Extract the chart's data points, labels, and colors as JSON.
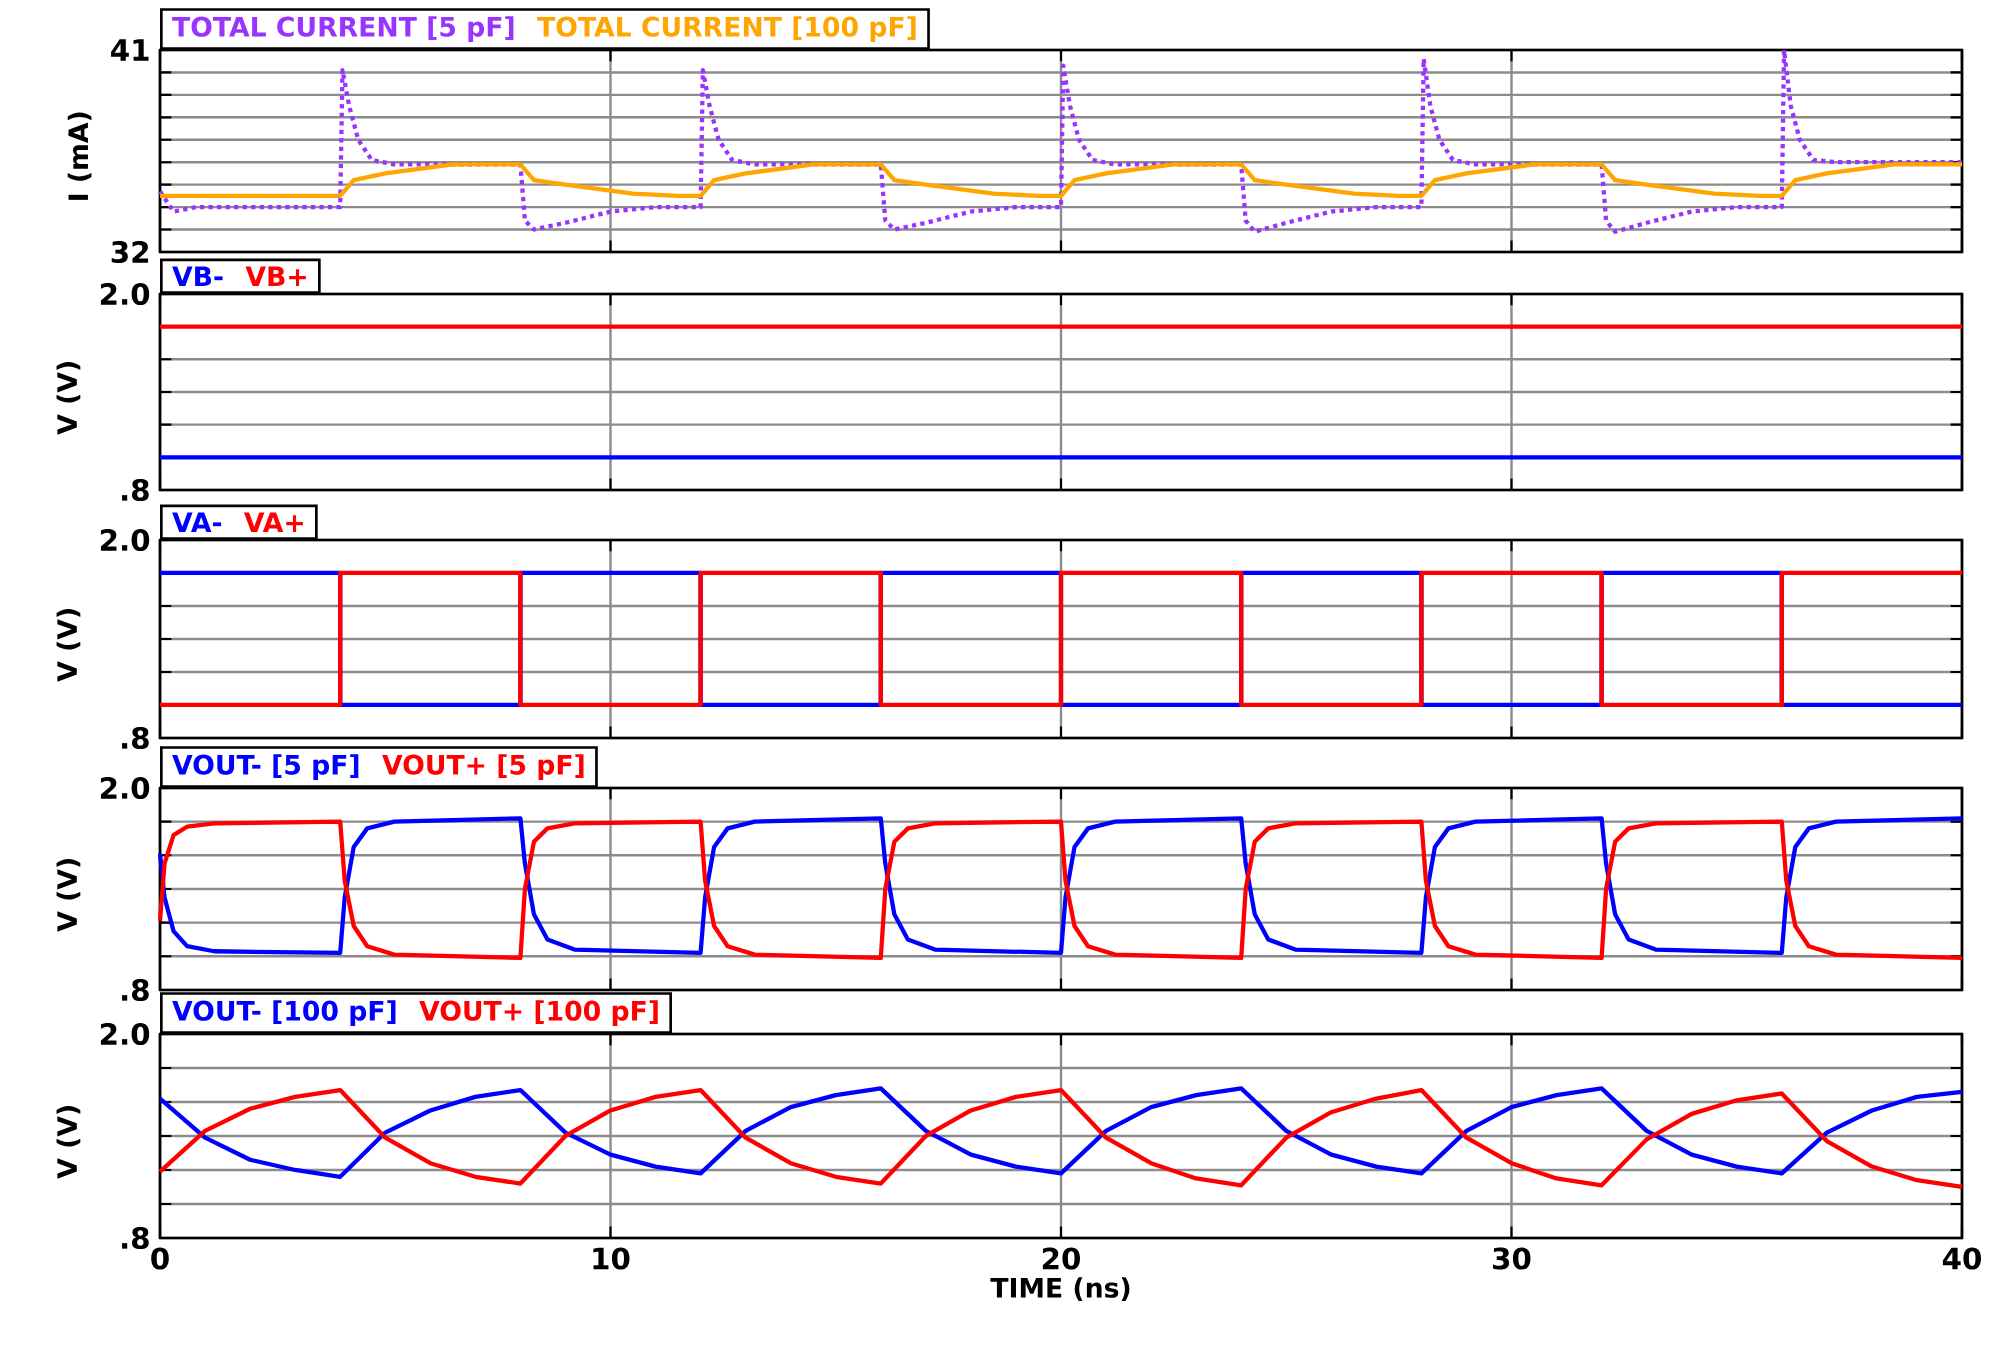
{
  "chart_data": [
    {
      "type": "line",
      "ylabel": "I (mA)",
      "legend": "top left",
      "grid": true,
      "tick_labels": "y",
      "xlim": [
        0,
        40
      ],
      "xticks": [
        0,
        10,
        20,
        30,
        40
      ],
      "ylim": [
        32,
        41
      ],
      "yticks": [
        32,
        {
          "value": 33,
          "label": null
        },
        {
          "value": 34,
          "label": null
        },
        {
          "value": 35,
          "label": null
        },
        {
          "value": 36,
          "label": null
        },
        {
          "value": 37,
          "label": null
        },
        {
          "value": 38,
          "label": null
        },
        {
          "value": 39,
          "label": null
        },
        {
          "value": 40,
          "label": null
        },
        41
      ],
      "series": [
        {
          "name": "TOTAL CURRENT [5 pF]",
          "color": "#9933ff",
          "line_style": "dotted",
          "x": [
            0,
            0.3,
            0.8,
            4,
            4.05,
            4.2,
            4.4,
            4.7,
            5.2,
            8,
            8.1,
            8.3,
            9,
            10,
            11,
            12,
            12.05,
            12.2,
            12.4,
            12.7,
            13.2,
            16,
            16.1,
            16.3,
            17,
            18,
            19,
            20,
            20.05,
            20.2,
            20.4,
            20.7,
            21.2,
            24,
            24.1,
            24.3,
            25,
            26,
            27,
            28,
            28.05,
            28.2,
            28.4,
            28.7,
            29.2,
            32,
            32.1,
            32.3,
            33,
            34,
            35,
            36,
            36.05,
            36.2,
            36.4,
            36.7,
            37.2,
            40
          ],
          "values": [
            34.7,
            33.8,
            34.0,
            34.0,
            40.1,
            38.5,
            37.0,
            36.1,
            35.9,
            35.9,
            33.4,
            33.0,
            33.3,
            33.8,
            34.0,
            34.0,
            40.1,
            38.5,
            37.0,
            36.1,
            35.9,
            35.9,
            33.4,
            33.0,
            33.3,
            33.8,
            34.0,
            34.0,
            40.3,
            38.5,
            37.0,
            36.1,
            35.9,
            35.9,
            33.4,
            32.9,
            33.3,
            33.8,
            34.0,
            34.0,
            40.6,
            38.5,
            37.0,
            36.1,
            35.9,
            35.9,
            33.4,
            32.9,
            33.3,
            33.8,
            34.0,
            34.0,
            41.0,
            38.5,
            37.0,
            36.1,
            36.0,
            36.0
          ]
        },
        {
          "name": "TOTAL CURRENT [100 pF]",
          "color": "#ffa500",
          "line_style": "solid",
          "x": [
            0,
            4,
            4.3,
            5,
            6.5,
            8,
            8.3,
            9,
            10.5,
            11.5,
            12,
            12.3,
            13,
            14.5,
            16,
            16.3,
            17,
            18.5,
            19.5,
            20,
            20.3,
            21,
            22.5,
            24,
            24.3,
            25,
            26.5,
            27.5,
            28,
            28.3,
            29,
            30.5,
            32,
            32.3,
            33,
            34.5,
            35.5,
            36,
            36.3,
            37,
            38.5,
            40
          ],
          "values": [
            34.5,
            34.5,
            35.2,
            35.5,
            35.9,
            35.9,
            35.2,
            35.0,
            34.6,
            34.5,
            34.5,
            35.2,
            35.5,
            35.9,
            35.9,
            35.2,
            35.0,
            34.6,
            34.5,
            34.5,
            35.2,
            35.5,
            35.9,
            35.9,
            35.2,
            35.0,
            34.6,
            34.5,
            34.5,
            35.2,
            35.5,
            35.9,
            35.9,
            35.2,
            35.0,
            34.6,
            34.5,
            34.5,
            35.2,
            35.5,
            35.9,
            35.9
          ]
        }
      ]
    },
    {
      "type": "line",
      "ylabel": "V (V)",
      "legend": "top left",
      "grid": true,
      "tick_labels": "y",
      "xlim": [
        0,
        40
      ],
      "xticks": [
        0,
        10,
        20,
        30,
        40
      ],
      "ylim": [
        0.8,
        2.0
      ],
      "yticks": [
        {
          "value": 0.8,
          "label": ".8"
        },
        {
          "value": 1.0,
          "label": null
        },
        {
          "value": 1.2,
          "label": null
        },
        {
          "value": 1.4,
          "label": null
        },
        {
          "value": 1.6,
          "label": null
        },
        {
          "value": 1.8,
          "label": null
        },
        {
          "value": 2.0,
          "label": "2.0"
        }
      ],
      "x": [
        0,
        40
      ],
      "series": [
        {
          "name": "VB-",
          "color": "#0000ff",
          "values": [
            1.0,
            1.0
          ]
        },
        {
          "name": "VB+",
          "color": "#ff0000",
          "values": [
            1.8,
            1.8
          ]
        }
      ]
    },
    {
      "type": "step",
      "ylabel": "V (V)",
      "legend": "top left",
      "grid": true,
      "tick_labels": "y",
      "xlim": [
        0,
        40
      ],
      "xticks": [
        0,
        10,
        20,
        30,
        40
      ],
      "ylim": [
        0.8,
        2.0
      ],
      "yticks": [
        {
          "value": 0.8,
          "label": ".8"
        },
        {
          "value": 1.0,
          "label": null
        },
        {
          "value": 1.2,
          "label": null
        },
        {
          "value": 1.4,
          "label": null
        },
        {
          "value": 1.6,
          "label": null
        },
        {
          "value": 1.8,
          "label": null
        },
        {
          "value": 2.0,
          "label": "2.0"
        }
      ],
      "x": [
        0,
        4,
        8,
        12,
        16,
        20,
        24,
        28,
        32,
        36,
        40
      ],
      "series": [
        {
          "name": "VA-",
          "color": "#0000ff",
          "values": [
            1.8,
            1.0,
            1.8,
            1.0,
            1.8,
            1.0,
            1.8,
            1.0,
            1.8,
            1.0,
            1.0
          ]
        },
        {
          "name": "VA+",
          "color": "#ff0000",
          "values": [
            1.0,
            1.8,
            1.0,
            1.8,
            1.0,
            1.8,
            1.0,
            1.8,
            1.0,
            1.8,
            1.8
          ]
        }
      ]
    },
    {
      "type": "line",
      "ylabel": "V (V)",
      "legend": "top left",
      "grid": true,
      "tick_labels": "y",
      "xlim": [
        0,
        40
      ],
      "xticks": [
        0,
        10,
        20,
        30,
        40
      ],
      "ylim": [
        0.8,
        2.0
      ],
      "yticks": [
        {
          "value": 0.8,
          "label": ".8"
        },
        {
          "value": 1.0,
          "label": null
        },
        {
          "value": 1.2,
          "label": null
        },
        {
          "value": 1.4,
          "label": null
        },
        {
          "value": 1.6,
          "label": null
        },
        {
          "value": 1.8,
          "label": null
        },
        {
          "value": 2.0,
          "label": "2.0"
        }
      ],
      "x": [
        0,
        0.1,
        0.3,
        0.6,
        1.2,
        4,
        4.1,
        4.3,
        4.6,
        5.2,
        8,
        8.1,
        8.3,
        8.6,
        9.2,
        12,
        12.1,
        12.3,
        12.6,
        13.2,
        16,
        16.1,
        16.3,
        16.6,
        17.2,
        20,
        20.1,
        20.3,
        20.6,
        21.2,
        24,
        24.1,
        24.3,
        24.6,
        25.2,
        28,
        28.1,
        28.3,
        28.6,
        29.2,
        32,
        32.1,
        32.3,
        32.6,
        33.2,
        36,
        36.1,
        36.3,
        36.6,
        37.2,
        40
      ],
      "series": [
        {
          "name": "VOUT- [5 pF]",
          "color": "#0000ff",
          "values": [
            1.61,
            1.35,
            1.15,
            1.06,
            1.03,
            1.02,
            1.35,
            1.65,
            1.76,
            1.8,
            1.82,
            1.55,
            1.25,
            1.1,
            1.04,
            1.02,
            1.35,
            1.65,
            1.76,
            1.8,
            1.82,
            1.55,
            1.25,
            1.1,
            1.04,
            1.02,
            1.35,
            1.65,
            1.76,
            1.8,
            1.82,
            1.55,
            1.25,
            1.1,
            1.04,
            1.02,
            1.35,
            1.65,
            1.76,
            1.8,
            1.82,
            1.55,
            1.25,
            1.1,
            1.04,
            1.02,
            1.35,
            1.65,
            1.76,
            1.8,
            1.82
          ]
        },
        {
          "name": "VOUT+ [5 pF]",
          "color": "#ff0000",
          "values": [
            1.21,
            1.55,
            1.72,
            1.77,
            1.79,
            1.8,
            1.45,
            1.18,
            1.06,
            1.01,
            0.99,
            1.4,
            1.68,
            1.76,
            1.79,
            1.8,
            1.45,
            1.18,
            1.06,
            1.01,
            0.99,
            1.4,
            1.68,
            1.76,
            1.79,
            1.8,
            1.45,
            1.18,
            1.06,
            1.01,
            0.99,
            1.4,
            1.68,
            1.76,
            1.79,
            1.8,
            1.45,
            1.18,
            1.06,
            1.01,
            0.99,
            1.4,
            1.68,
            1.76,
            1.79,
            1.8,
            1.45,
            1.18,
            1.06,
            1.01,
            0.99
          ]
        }
      ]
    },
    {
      "type": "line",
      "ylabel": "V (V)",
      "xlabel": "TIME (ns)",
      "legend": "top left",
      "grid": true,
      "xlim": [
        0,
        40
      ],
      "xticks": [
        0,
        10,
        20,
        30,
        40
      ],
      "ylim": [
        0.8,
        2.0
      ],
      "yticks": [
        {
          "value": 0.8,
          "label": ".8"
        },
        {
          "value": 1.0,
          "label": null
        },
        {
          "value": 1.2,
          "label": null
        },
        {
          "value": 1.4,
          "label": null
        },
        {
          "value": 1.6,
          "label": null
        },
        {
          "value": 1.8,
          "label": null
        },
        {
          "value": 2.0,
          "label": "2.0"
        }
      ],
      "x": [
        0,
        1,
        2,
        3,
        4,
        5,
        6,
        7,
        8,
        9,
        10,
        11,
        12,
        13,
        14,
        15,
        16,
        17,
        18,
        19,
        20,
        21,
        22,
        23,
        24,
        25,
        26,
        27,
        28,
        29,
        30,
        31,
        32,
        33,
        34,
        35,
        36,
        37,
        38,
        39,
        40
      ],
      "series": [
        {
          "name": "VOUT- [100 pF]",
          "color": "#0000ff",
          "values": [
            1.62,
            1.39,
            1.26,
            1.2,
            1.16,
            1.42,
            1.55,
            1.63,
            1.67,
            1.42,
            1.29,
            1.22,
            1.18,
            1.43,
            1.57,
            1.64,
            1.68,
            1.43,
            1.29,
            1.22,
            1.18,
            1.43,
            1.57,
            1.64,
            1.68,
            1.43,
            1.29,
            1.22,
            1.18,
            1.43,
            1.57,
            1.64,
            1.68,
            1.43,
            1.29,
            1.22,
            1.18,
            1.42,
            1.55,
            1.63,
            1.66
          ]
        },
        {
          "name": "VOUT+ [100 pF]",
          "color": "#ff0000",
          "values": [
            1.19,
            1.43,
            1.56,
            1.63,
            1.67,
            1.39,
            1.24,
            1.16,
            1.12,
            1.4,
            1.55,
            1.63,
            1.67,
            1.39,
            1.24,
            1.16,
            1.12,
            1.4,
            1.55,
            1.63,
            1.67,
            1.39,
            1.24,
            1.15,
            1.11,
            1.39,
            1.54,
            1.62,
            1.67,
            1.39,
            1.24,
            1.15,
            1.11,
            1.38,
            1.53,
            1.61,
            1.65,
            1.37,
            1.22,
            1.14,
            1.1
          ]
        }
      ]
    }
  ]
}
